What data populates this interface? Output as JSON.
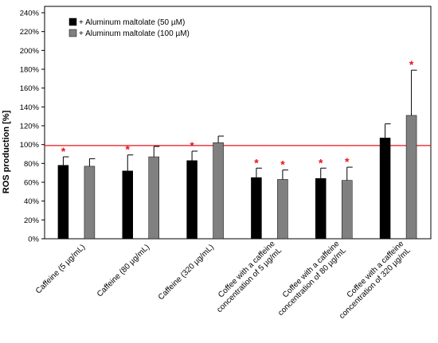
{
  "chart_data": {
    "type": "bar",
    "ylabel": "ROS production [%]",
    "ylim": [
      0,
      240
    ],
    "yticks": [
      0,
      20,
      40,
      60,
      80,
      100,
      120,
      140,
      160,
      180,
      200,
      220,
      240
    ],
    "ytick_labels": [
      "0%",
      "20%",
      "40%",
      "60%",
      "80%",
      "100%",
      "120%",
      "140%",
      "160%",
      "180%",
      "200%",
      "220%",
      "240%"
    ],
    "categories": [
      [
        "Caffeine (5 µg/mL)"
      ],
      [
        "Caffeine (80 µg/mL)"
      ],
      [
        "Caffeine (320 µg/mL)"
      ],
      [
        "Coffee with a caffeine",
        "concentration of 5 µg/mL"
      ],
      [
        "Coffee with a caffeine",
        "concentration of 80 µg/mL"
      ],
      [
        "Coffee with a caffeine",
        "concentration of 320 µg/mL"
      ]
    ],
    "series": [
      {
        "name": "+ Aluminum maltolate (50 µM)",
        "color": "#000000",
        "values": [
          78,
          72,
          83,
          65,
          64,
          107
        ],
        "errors": [
          9,
          17,
          10,
          10,
          11,
          15
        ],
        "significant": [
          true,
          true,
          true,
          true,
          true,
          false
        ]
      },
      {
        "name": "+ Aluminum maltolate (100 µM)",
        "color": "#808080",
        "values": [
          77,
          87,
          102,
          63,
          62,
          131
        ],
        "errors": [
          8,
          11,
          7,
          10,
          14,
          48
        ],
        "significant": [
          false,
          false,
          false,
          true,
          true,
          true
        ]
      }
    ],
    "reference_line": {
      "value": 99,
      "color": "#e8141a"
    },
    "significance_marker": "*",
    "significance_color": "#e8141a",
    "legend_position": "top-left",
    "grid": false
  }
}
